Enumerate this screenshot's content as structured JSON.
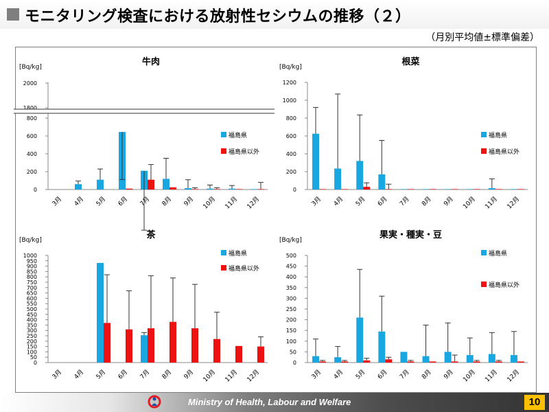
{
  "header": {
    "title": "モニタリング検査における放射性セシウムの推移（２）",
    "subtitle": "（月別平均値±標準偏差）"
  },
  "footer": {
    "org": "Ministry of Health, Labour and Welfare",
    "page": "10"
  },
  "colors": {
    "fukushima": "#1aa7e0",
    "other": "#ee1111",
    "error": "#333333"
  },
  "months": [
    "3月",
    "4月",
    "5月",
    "6月",
    "7月",
    "8月",
    "9月",
    "10月",
    "11月",
    "12月"
  ],
  "legend": {
    "fukushima": "福島県",
    "other": "福島県以外"
  },
  "chart_data": [
    {
      "type": "bar",
      "title": "牛肉",
      "ylabel": "[Bq/kg]",
      "ylim": [
        0,
        2000
      ],
      "axis_break": true,
      "yticks": [
        "0",
        "200",
        "400",
        "600",
        "800",
        "1800",
        "2000"
      ],
      "categories": [
        "3月",
        "4月",
        "5月",
        "6月",
        "7月",
        "8月",
        "9月",
        "10月",
        "11月",
        "12月"
      ],
      "series": [
        {
          "name": "福島県",
          "values": [
            null,
            60,
            110,
            645,
            210,
            120,
            15,
            10,
            10,
            5
          ],
          "errors": [
            null,
            35,
            120,
            575,
            600,
            230,
            95,
            40,
            35,
            0
          ]
        },
        {
          "name": "福島県以外",
          "values": [
            null,
            null,
            null,
            10,
            110,
            25,
            5,
            5,
            5,
            5
          ],
          "errors": [
            null,
            null,
            null,
            0,
            170,
            0,
            15,
            15,
            0,
            75
          ]
        }
      ]
    },
    {
      "type": "bar",
      "title": "根菜",
      "ylabel": "[Bq/kg]",
      "ylim": [
        0,
        1200
      ],
      "yticks": [
        "0",
        "200",
        "400",
        "600",
        "800",
        "1000",
        "1200"
      ],
      "categories": [
        "3月",
        "4月",
        "5月",
        "6月",
        "7月",
        "8月",
        "9月",
        "10月",
        "11月",
        "12月"
      ],
      "series": [
        {
          "name": "福島県",
          "values": [
            625,
            235,
            320,
            170,
            5,
            5,
            5,
            5,
            15,
            5
          ],
          "errors": [
            295,
            835,
            515,
            380,
            0,
            0,
            0,
            0,
            105,
            0
          ]
        },
        {
          "name": "福島県以外",
          "values": [
            5,
            5,
            30,
            5,
            5,
            5,
            5,
            5,
            5,
            5
          ],
          "errors": [
            0,
            0,
            45,
            55,
            0,
            0,
            0,
            0,
            0,
            0
          ]
        }
      ]
    },
    {
      "type": "bar",
      "title": "茶",
      "ylabel": "[Bq/kg]",
      "ylim": [
        0,
        1000
      ],
      "yticks": [
        "0",
        "50",
        "100",
        "150",
        "200",
        "250",
        "300",
        "350",
        "400",
        "450",
        "500",
        "550",
        "600",
        "650",
        "700",
        "750",
        "800",
        "850",
        "900",
        "950",
        "1000"
      ],
      "categories": [
        "3月",
        "4月",
        "5月",
        "6月",
        "7月",
        "8月",
        "9月",
        "10月",
        "11月",
        "12月"
      ],
      "series": [
        {
          "name": "福島県",
          "values": [
            null,
            null,
            930,
            null,
            255,
            null,
            null,
            null,
            null,
            null
          ],
          "errors": [
            null,
            null,
            0,
            null,
            25,
            null,
            null,
            null,
            null,
            null
          ]
        },
        {
          "name": "福島県以外",
          "values": [
            null,
            null,
            370,
            310,
            320,
            380,
            320,
            220,
            155,
            150
          ],
          "errors": [
            null,
            null,
            450,
            360,
            490,
            410,
            410,
            250,
            0,
            90
          ]
        }
      ]
    },
    {
      "type": "bar",
      "title": "果実・種実・豆",
      "ylabel": "[Bq/kg]",
      "ylim": [
        0,
        500
      ],
      "yticks": [
        "0",
        "50",
        "100",
        "150",
        "200",
        "250",
        "300",
        "350",
        "400",
        "450",
        "500"
      ],
      "categories": [
        "3月",
        "4月",
        "5月",
        "6月",
        "7月",
        "8月",
        "9月",
        "10月",
        "11月",
        "12月"
      ],
      "series": [
        {
          "name": "福島県",
          "values": [
            30,
            25,
            210,
            145,
            50,
            30,
            50,
            35,
            40,
            35
          ],
          "errors": [
            80,
            50,
            225,
            165,
            0,
            145,
            135,
            80,
            100,
            110
          ]
        },
        {
          "name": "福島県以外",
          "values": [
            5,
            5,
            10,
            15,
            5,
            5,
            5,
            5,
            5,
            5
          ],
          "errors": [
            5,
            5,
            10,
            10,
            5,
            0,
            30,
            5,
            5,
            0
          ]
        }
      ]
    }
  ]
}
